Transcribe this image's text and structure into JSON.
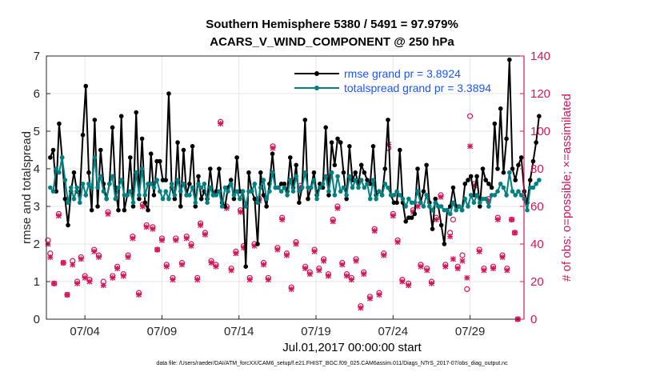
{
  "title_line1": "Southern Hemisphere 5380 / 5491 = 97.979%",
  "title_line2": "ACARS_V_WIND_COMPONENT @ 250 hPa",
  "xlabel": "Jul.01,2017 00:00:00 start",
  "footnote": "data file: /Users/raeder/DAI/ATM_forcXX/CAM6_setup/f.e21.FHIST_BGC.f09_025.CAM6assim.011/Diags_NTrS_2017-07/obs_diag_output.nc",
  "colors": {
    "rmse": "#000000",
    "spread": "#008080",
    "obs": "#d6145a",
    "legend_text": "#1a55ff"
  },
  "chart_data": {
    "type": "line",
    "title": "Southern Hemisphere 5380 / 5491 = 97.979%",
    "subtitle": "ACARS_V_WIND_COMPONENT @ 250 hPa",
    "xlabel": "Jul.01,2017 00:00:00 start",
    "ylabel_left": "rmse and totalspread",
    "ylabel_right": "# of obs: o=possible; ×=assimilated",
    "ylim_left": [
      0,
      7
    ],
    "ylim_right": [
      0,
      140
    ],
    "xlim": [
      1.5,
      32.5
    ],
    "yticks_left": [
      "0",
      "1",
      "2",
      "3",
      "4",
      "5",
      "6",
      "7"
    ],
    "yticks_right": [
      "0",
      "20",
      "40",
      "60",
      "80",
      "100",
      "120",
      "140"
    ],
    "xticks": [
      {
        "x": 4,
        "label": "07/04"
      },
      {
        "x": 9,
        "label": "07/09"
      },
      {
        "x": 14,
        "label": "07/14"
      },
      {
        "x": 19,
        "label": "07/19"
      },
      {
        "x": 24,
        "label": "07/24"
      },
      {
        "x": 29,
        "label": "07/29"
      }
    ],
    "grid": true,
    "legend_position": "top-right",
    "series": [
      {
        "name": "rmse grand pr = 3.8924",
        "axis": "left",
        "values": [
          4.3,
          4.5,
          3.4,
          5.2,
          4.3,
          3.2,
          2.5,
          3.4,
          3.9,
          3.4,
          3.3,
          4.9,
          6.2,
          3.9,
          2.9,
          5.3,
          3.0,
          4.5,
          3.6,
          3.2,
          3.6,
          5.1,
          3.5,
          2.9,
          5.4,
          2.9,
          3.3,
          4.3,
          3.0,
          5.5,
          3.2,
          4.8,
          3.1,
          2.9,
          4.4,
          3.3,
          4.2,
          4.2,
          3.7,
          3.7,
          6.0,
          3.5,
          3.2,
          4.7,
          3.0,
          4.5,
          3.3,
          3.6,
          4.6,
          3.0,
          3.8,
          3.2,
          3.4,
          3.2,
          4.0,
          3.3,
          3.4,
          4.0,
          3.1,
          3.0,
          3.5,
          3.7,
          3.2,
          4.3,
          3.4,
          3.4,
          1.4,
          3.9,
          3.4,
          3.2,
          2.0,
          3.9,
          3.3,
          3.0,
          3.6,
          4.4,
          3.5,
          3.5,
          3.6,
          3.6,
          3.4,
          4.3,
          3.5,
          4.1,
          3.1,
          3.5,
          5.3,
          3.2,
          3.5,
          3.9,
          3.3,
          3.6,
          3.5,
          5.1,
          3.3,
          4.7,
          4.1,
          4.8,
          4.7,
          3.9,
          3.2,
          4.6,
          3.7,
          3.9,
          3.6,
          4.1,
          3.9,
          3.7,
          3.6,
          4.6,
          3.3,
          3.4,
          3.3,
          4.0,
          5.3,
          3.3,
          3.1,
          3.1,
          4.5,
          3.1,
          2.6,
          2.7,
          2.7,
          2.8,
          4.0,
          3.1,
          3.4,
          4.1,
          3.1,
          2.4,
          3.2,
          3.0,
          2.5,
          2.0,
          2.9,
          3.0,
          3.5,
          3.0,
          3.0,
          2.9,
          3.6,
          3.7,
          3.8,
          3.3,
          3.8,
          3.0,
          4.0,
          3.7,
          3.6,
          3.5,
          5.2,
          4.0,
          5.6,
          3.9,
          4.8,
          6.9,
          4.0,
          3.7,
          4.1,
          4.3,
          3.4,
          3.1,
          3.7,
          4.2,
          4.7,
          5.4
        ],
        "x_start": 1.75,
        "x_step": 0.1923
      },
      {
        "name": "totalspread grand pr = 3.3894",
        "axis": "left",
        "values": [
          3.5,
          3.4,
          4.0,
          3.9,
          4.3,
          3.7,
          3.1,
          3.5,
          3.2,
          3.5,
          3.1,
          3.6,
          3.3,
          3.6,
          3.5,
          4.3,
          3.5,
          3.8,
          3.4,
          3.2,
          3.6,
          3.8,
          3.2,
          3.5,
          3.7,
          3.3,
          3.3,
          3.4,
          3.1,
          3.9,
          3.3,
          4.0,
          3.3,
          3.6,
          3.6,
          3.5,
          3.7,
          3.4,
          3.2,
          3.4,
          3.2,
          3.6,
          3.3,
          3.7,
          3.4,
          3.6,
          3.3,
          3.3,
          3.5,
          3.1,
          3.6,
          3.5,
          3.6,
          3.1,
          3.5,
          3.3,
          3.3,
          3.4,
          3.0,
          3.5,
          3.4,
          3.6,
          3.3,
          3.4,
          3.2,
          3.4,
          3.0,
          3.4,
          3.4,
          3.6,
          3.1,
          3.5,
          3.7,
          3.2,
          3.4,
          3.9,
          3.5,
          3.5,
          3.4,
          3.5,
          3.3,
          3.7,
          3.4,
          3.8,
          3.4,
          3.5,
          3.9,
          3.5,
          3.5,
          3.7,
          3.2,
          3.5,
          3.6,
          3.8,
          3.4,
          3.9,
          3.3,
          3.8,
          3.4,
          3.5,
          3.3,
          3.8,
          3.5,
          3.7,
          3.5,
          3.7,
          3.5,
          3.6,
          3.2,
          3.7,
          3.2,
          3.4,
          3.3,
          3.6,
          3.5,
          3.3,
          3.3,
          3.4,
          3.3,
          3.2,
          3.0,
          3.2,
          3.1,
          3.1,
          3.4,
          3.1,
          3.0,
          3.3,
          3.0,
          2.9,
          3.1,
          3.0,
          3.0,
          2.9,
          2.9,
          2.8,
          3.1,
          2.9,
          3.0,
          2.9,
          3.2,
          3.0,
          3.3,
          3.1,
          3.3,
          3.1,
          3.2,
          3.2,
          3.0,
          3.3,
          3.3,
          3.4,
          3.6,
          3.5,
          3.3,
          3.9,
          3.4,
          3.3,
          3.4,
          3.3,
          3.2,
          2.9,
          3.5,
          3.5,
          3.6,
          3.7
        ],
        "x_start": 1.75,
        "x_step": 0.1923
      },
      {
        "name": "# of obs possible",
        "axis": "right",
        "marker": "o",
        "points": [
          [
            1.6,
            42
          ],
          [
            1.75,
            35
          ],
          [
            2.0,
            19
          ],
          [
            2.3,
            56
          ],
          [
            2.6,
            30
          ],
          [
            2.85,
            13
          ],
          [
            3.2,
            31
          ],
          [
            3.5,
            20
          ],
          [
            3.75,
            33
          ],
          [
            4.0,
            23
          ],
          [
            4.3,
            21
          ],
          [
            4.6,
            37
          ],
          [
            4.9,
            34
          ],
          [
            5.2,
            20
          ],
          [
            5.5,
            57
          ],
          [
            5.8,
            23
          ],
          [
            6.1,
            28
          ],
          [
            6.5,
            24
          ],
          [
            6.8,
            34
          ],
          [
            7.1,
            44
          ],
          [
            7.5,
            14
          ],
          [
            7.75,
            61
          ],
          [
            8.0,
            50
          ],
          [
            8.4,
            49
          ],
          [
            8.7,
            37
          ],
          [
            9.0,
            43
          ],
          [
            9.3,
            29
          ],
          [
            9.7,
            22
          ],
          [
            9.9,
            43
          ],
          [
            10.3,
            30
          ],
          [
            10.6,
            44
          ],
          [
            10.9,
            40
          ],
          [
            11.3,
            22
          ],
          [
            11.5,
            51
          ],
          [
            11.8,
            46
          ],
          [
            12.2,
            31
          ],
          [
            12.5,
            29
          ],
          [
            12.8,
            105
          ],
          [
            13.2,
            60
          ],
          [
            13.5,
            27
          ],
          [
            13.8,
            36
          ],
          [
            14.1,
            58
          ],
          [
            14.3,
            39
          ],
          [
            14.7,
            22
          ],
          [
            15.0,
            40
          ],
          [
            15.3,
            64
          ],
          [
            15.6,
            30
          ],
          [
            15.9,
            22
          ],
          [
            16.2,
            92
          ],
          [
            16.5,
            38
          ],
          [
            16.8,
            54
          ],
          [
            17.1,
            35
          ],
          [
            17.4,
            17
          ],
          [
            17.7,
            41
          ],
          [
            18.0,
            71
          ],
          [
            18.3,
            28
          ],
          [
            18.6,
            25
          ],
          [
            18.9,
            37
          ],
          [
            19.2,
            27
          ],
          [
            19.5,
            32
          ],
          [
            19.8,
            24
          ],
          [
            20.1,
            53
          ],
          [
            20.4,
            60
          ],
          [
            20.7,
            30
          ],
          [
            21.0,
            24
          ],
          [
            21.3,
            22
          ],
          [
            21.6,
            32
          ],
          [
            21.9,
            7
          ],
          [
            22.1,
            25
          ],
          [
            22.5,
            12
          ],
          [
            22.8,
            48
          ],
          [
            23.1,
            14
          ],
          [
            23.4,
            35
          ],
          [
            23.7,
            91
          ],
          [
            24.0,
            56
          ],
          [
            24.3,
            42
          ],
          [
            24.6,
            21
          ],
          [
            25.0,
            19
          ],
          [
            25.3,
            58
          ],
          [
            25.6,
            61
          ],
          [
            25.8,
            29
          ],
          [
            26.2,
            27
          ],
          [
            26.5,
            20
          ],
          [
            26.8,
            54
          ],
          [
            27.1,
            66
          ],
          [
            27.4,
            29
          ],
          [
            27.7,
            46
          ],
          [
            27.9,
            53
          ],
          [
            28.2,
            28
          ],
          [
            28.5,
            34
          ],
          [
            28.8,
            16
          ],
          [
            29.0,
            108
          ],
          [
            29.3,
            72
          ],
          [
            29.6,
            37
          ],
          [
            29.9,
            27
          ],
          [
            30.2,
            64
          ],
          [
            30.5,
            28
          ],
          [
            30.8,
            54
          ],
          [
            31.1,
            34
          ],
          [
            31.4,
            27
          ],
          [
            31.7,
            53
          ],
          [
            31.9,
            46
          ],
          [
            32.1,
            0
          ]
        ]
      },
      {
        "name": "# of obs assimilated",
        "axis": "right",
        "marker": "x",
        "points": [
          [
            1.6,
            40
          ],
          [
            1.75,
            33
          ],
          [
            2.0,
            19
          ],
          [
            2.3,
            55
          ],
          [
            2.6,
            30
          ],
          [
            2.85,
            13
          ],
          [
            3.2,
            29
          ],
          [
            3.5,
            19
          ],
          [
            3.75,
            32
          ],
          [
            4.0,
            22
          ],
          [
            4.3,
            20
          ],
          [
            4.6,
            36
          ],
          [
            4.9,
            33
          ],
          [
            5.2,
            18
          ],
          [
            5.5,
            56
          ],
          [
            5.8,
            22
          ],
          [
            6.1,
            27
          ],
          [
            6.5,
            23
          ],
          [
            6.8,
            33
          ],
          [
            7.1,
            43
          ],
          [
            7.5,
            13
          ],
          [
            7.75,
            60
          ],
          [
            8.0,
            49
          ],
          [
            8.4,
            48
          ],
          [
            8.7,
            37
          ],
          [
            9.0,
            42
          ],
          [
            9.3,
            28
          ],
          [
            9.7,
            21
          ],
          [
            9.9,
            42
          ],
          [
            10.3,
            29
          ],
          [
            10.6,
            43
          ],
          [
            10.9,
            39
          ],
          [
            11.3,
            21
          ],
          [
            11.5,
            50
          ],
          [
            11.8,
            45
          ],
          [
            12.2,
            30
          ],
          [
            12.5,
            28
          ],
          [
            12.8,
            104
          ],
          [
            13.2,
            59
          ],
          [
            13.5,
            26
          ],
          [
            13.8,
            35
          ],
          [
            14.1,
            57
          ],
          [
            14.3,
            38
          ],
          [
            14.7,
            21
          ],
          [
            15.0,
            39
          ],
          [
            15.3,
            63
          ],
          [
            15.6,
            29
          ],
          [
            15.9,
            21
          ],
          [
            16.2,
            91
          ],
          [
            16.5,
            37
          ],
          [
            16.8,
            53
          ],
          [
            17.1,
            34
          ],
          [
            17.4,
            16
          ],
          [
            17.7,
            40
          ],
          [
            18.0,
            70
          ],
          [
            18.3,
            27
          ],
          [
            18.6,
            24
          ],
          [
            18.9,
            36
          ],
          [
            19.2,
            26
          ],
          [
            19.5,
            31
          ],
          [
            19.8,
            23
          ],
          [
            20.1,
            52
          ],
          [
            20.4,
            59
          ],
          [
            20.7,
            29
          ],
          [
            21.0,
            23
          ],
          [
            21.3,
            21
          ],
          [
            21.6,
            31
          ],
          [
            21.9,
            6
          ],
          [
            22.1,
            24
          ],
          [
            22.5,
            11
          ],
          [
            22.8,
            47
          ],
          [
            23.1,
            13
          ],
          [
            23.4,
            34
          ],
          [
            23.7,
            93
          ],
          [
            24.0,
            55
          ],
          [
            24.3,
            41
          ],
          [
            24.6,
            20
          ],
          [
            25.0,
            18
          ],
          [
            25.3,
            57
          ],
          [
            25.6,
            60
          ],
          [
            25.8,
            28
          ],
          [
            26.2,
            26
          ],
          [
            26.5,
            19
          ],
          [
            26.8,
            53
          ],
          [
            27.1,
            65
          ],
          [
            27.4,
            28
          ],
          [
            27.7,
            44
          ],
          [
            27.9,
            32
          ],
          [
            28.2,
            27
          ],
          [
            28.5,
            31
          ],
          [
            28.8,
            22
          ],
          [
            29.0,
            92
          ],
          [
            29.3,
            71
          ],
          [
            29.6,
            36
          ],
          [
            29.9,
            26
          ],
          [
            30.2,
            63
          ],
          [
            30.5,
            27
          ],
          [
            30.8,
            53
          ],
          [
            31.1,
            33
          ],
          [
            31.4,
            26
          ],
          [
            31.7,
            53
          ],
          [
            31.9,
            46
          ],
          [
            32.1,
            0
          ]
        ]
      }
    ]
  }
}
